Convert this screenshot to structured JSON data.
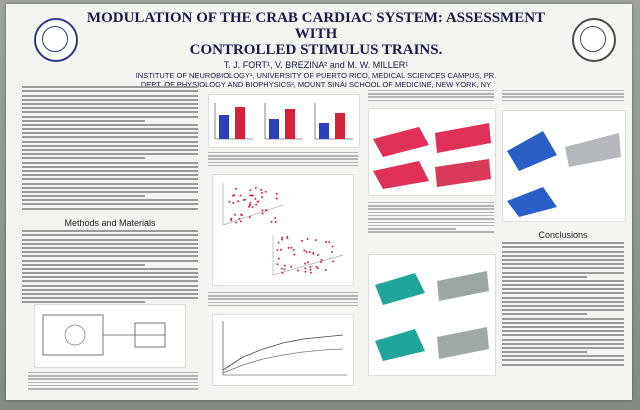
{
  "poster": {
    "title_line1": "MODULATION OF THE CRAB CARDIAC SYSTEM: ASSESSMENT WITH",
    "title_line2": "CONTROLLED STIMULUS TRAINS.",
    "authors": "T. J. FORT¹, V. BREZINA² and M. W. MILLER¹",
    "affiliation_1": "INSTITUTE OF NEUROBIOLOGY¹, UNIVERSITY OF PUERTO RICO, MEDICAL SCIENCES CAMPUS, PR.",
    "affiliation_2": "DEPT. OF PHYSIOLOGY AND BIOPHYSICS², MOUNT SINAI SCHOOL OF MEDICINE, NEW YORK, NY",
    "sections": {
      "methods": "Methods and Materials",
      "conclusions": "Conclusions"
    }
  },
  "colors": {
    "title": "#1a1a4a",
    "bar_blue": "#2a3fbf",
    "bar_red": "#d4223a",
    "surface_red": "#e0305a",
    "surface_teal": "#1fa59a",
    "surface_blue": "#2a5fc8",
    "scatter_red": "#d42a4a"
  }
}
